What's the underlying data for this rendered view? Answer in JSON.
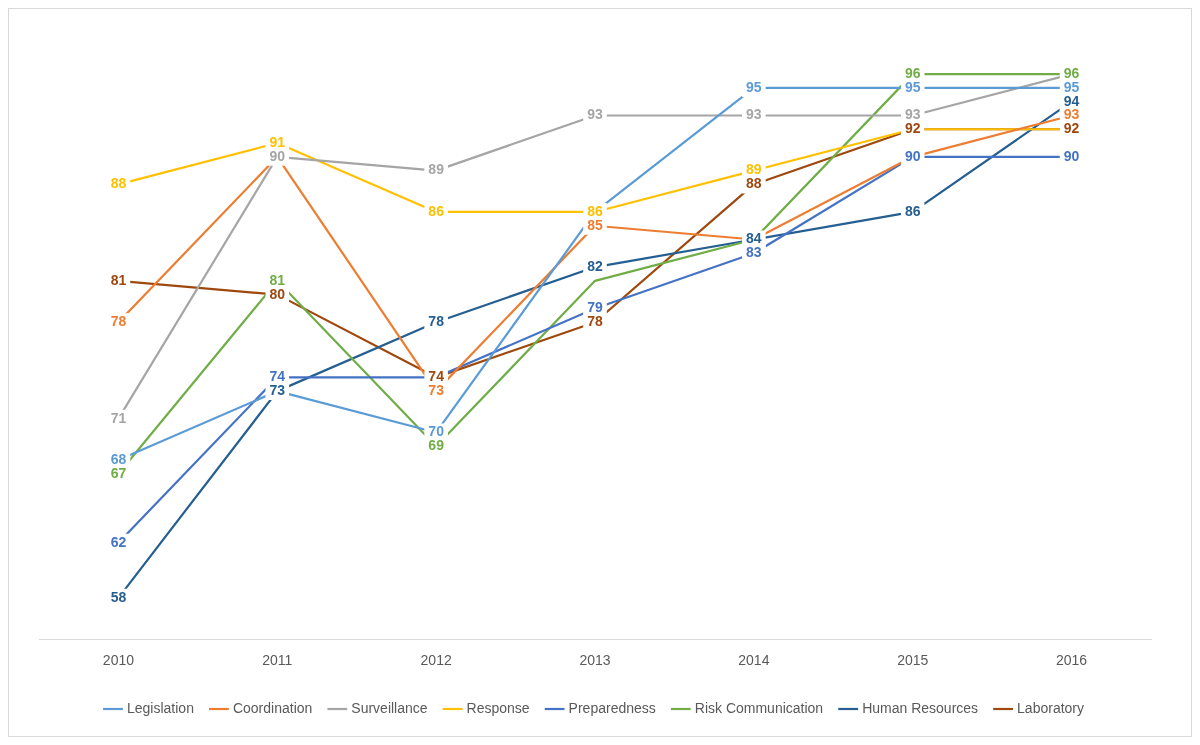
{
  "chart_data": {
    "type": "line",
    "categories": [
      "2010",
      "2011",
      "2012",
      "2013",
      "2014",
      "2015",
      "2016"
    ],
    "tick_labels": "x",
    "grid": false,
    "legend": "bottom",
    "line_style": "solid",
    "series": [
      {
        "name": "Legislation",
        "color": "#5b9bd5",
        "values": [
          68,
          73,
          70,
          86,
          95,
          95,
          95
        ],
        "value_labels": [
          "68",
          null,
          "70",
          null,
          "95",
          "95",
          "95"
        ]
      },
      {
        "name": "Coordination",
        "color": "#ed7d31",
        "values": [
          78,
          90,
          73,
          85,
          84,
          90,
          93
        ],
        "value_labels": [
          "78",
          null,
          "73",
          "85",
          null,
          null,
          "93"
        ]
      },
      {
        "name": "Surveillance",
        "color": "#a5a5a5",
        "values": [
          71,
          90,
          89,
          93,
          93,
          93,
          96
        ],
        "value_labels": [
          "71",
          "90",
          "89",
          "93",
          "93",
          "93",
          null
        ]
      },
      {
        "name": "Response",
        "color": "#ffc000",
        "values": [
          88,
          91,
          86,
          86,
          89,
          92,
          92
        ],
        "value_labels": [
          "88",
          "91",
          "86",
          "86",
          "89",
          null,
          null
        ]
      },
      {
        "name": "Preparedness",
        "color": "#4472c4",
        "values": [
          62,
          74,
          74,
          79,
          83,
          90,
          90
        ],
        "value_labels": [
          "62",
          "74",
          null,
          "79",
          "83",
          "90",
          "90"
        ]
      },
      {
        "name": "Risk Communication",
        "color": "#70ad47",
        "values": [
          67,
          81,
          69,
          81,
          84,
          96,
          96
        ],
        "value_labels": [
          "67",
          "81",
          "69",
          null,
          null,
          "96",
          "96"
        ]
      },
      {
        "name": "Human Resources",
        "color": "#255e91",
        "values": [
          58,
          73,
          78,
          82,
          84,
          86,
          94
        ],
        "value_labels": [
          "58",
          "73",
          "78",
          "82",
          "84",
          "86",
          "94"
        ]
      },
      {
        "name": "Laboratory",
        "color": "#9e480e",
        "values": [
          81,
          80,
          74,
          78,
          88,
          92,
          92
        ],
        "value_labels": [
          "81",
          "80",
          "74",
          "78",
          "88",
          "92",
          "92"
        ]
      }
    ]
  }
}
